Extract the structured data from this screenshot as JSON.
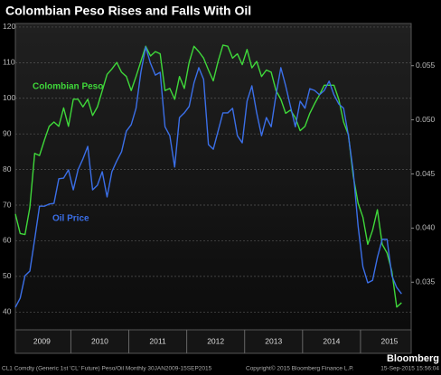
{
  "chart_data": {
    "type": "line",
    "title": "Colombian Peso Rises and Falls With Oil",
    "x": [
      "2009-01",
      "2009-02",
      "2009-03",
      "2009-04",
      "2009-05",
      "2009-06",
      "2009-07",
      "2009-08",
      "2009-09",
      "2009-10",
      "2009-11",
      "2009-12",
      "2010-01",
      "2010-02",
      "2010-03",
      "2010-04",
      "2010-05",
      "2010-06",
      "2010-07",
      "2010-08",
      "2010-09",
      "2010-10",
      "2010-11",
      "2010-12",
      "2011-01",
      "2011-02",
      "2011-03",
      "2011-04",
      "2011-05",
      "2011-06",
      "2011-07",
      "2011-08",
      "2011-09",
      "2011-10",
      "2011-11",
      "2011-12",
      "2012-01",
      "2012-02",
      "2012-03",
      "2012-04",
      "2012-05",
      "2012-06",
      "2012-07",
      "2012-08",
      "2012-09",
      "2012-10",
      "2012-11",
      "2012-12",
      "2013-01",
      "2013-02",
      "2013-03",
      "2013-04",
      "2013-05",
      "2013-06",
      "2013-07",
      "2013-08",
      "2013-09",
      "2013-10",
      "2013-11",
      "2013-12",
      "2014-01",
      "2014-02",
      "2014-03",
      "2014-04",
      "2014-05",
      "2014-06",
      "2014-07",
      "2014-08",
      "2014-09",
      "2014-10",
      "2014-11",
      "2014-12",
      "2015-01",
      "2015-02",
      "2015-03",
      "2015-04",
      "2015-05",
      "2015-06",
      "2015-07",
      "2015-08",
      "2015-09"
    ],
    "xlim": [
      "2009-01",
      "2015-11"
    ],
    "xticks": [
      2009,
      2010,
      2011,
      2012,
      2013,
      2014,
      2015
    ],
    "ylim": [
      35,
      121
    ],
    "yticks": [
      40,
      50,
      60,
      70,
      80,
      90,
      100,
      110,
      120
    ],
    "y2lim": [
      0.0306,
      0.0589
    ],
    "y2ticks": [
      0.035,
      {
        "value": 0.04,
        "label": "0.040"
      },
      0.045,
      {
        "value": 0.05,
        "label": "0.050"
      },
      0.055
    ],
    "grid": true,
    "series": [
      {
        "name": "Colombian Peso",
        "color": "#3fd83a",
        "axis": "y2",
        "values": [
          0.0413,
          0.0395,
          0.0394,
          0.0419,
          0.0469,
          0.0467,
          0.0481,
          0.0494,
          0.0498,
          0.0494,
          0.0511,
          0.0494,
          0.0519,
          0.0519,
          0.0512,
          0.0519,
          0.0504,
          0.0512,
          0.0527,
          0.0542,
          0.0547,
          0.0553,
          0.0544,
          0.054,
          0.0527,
          0.054,
          0.0554,
          0.0568,
          0.0559,
          0.0563,
          0.0561,
          0.0527,
          0.0529,
          0.0519,
          0.054,
          0.0529,
          0.0553,
          0.0568,
          0.0563,
          0.0557,
          0.0546,
          0.0536,
          0.0554,
          0.0569,
          0.0568,
          0.0557,
          0.0561,
          0.0551,
          0.0565,
          0.0548,
          0.0554,
          0.054,
          0.0546,
          0.0544,
          0.0527,
          0.0519,
          0.0506,
          0.0509,
          0.0502,
          0.049,
          0.0494,
          0.0506,
          0.0515,
          0.0523,
          0.0532,
          0.0532,
          0.0532,
          0.0519,
          0.0498,
          0.0486,
          0.0448,
          0.0423,
          0.041,
          0.0385,
          0.0398,
          0.0417,
          0.0385,
          0.0377,
          0.036,
          0.0327,
          0.0331
        ]
      },
      {
        "name": "Oil Price",
        "color": "#3b6fe8",
        "axis": "y",
        "values": [
          41.3,
          43.9,
          50.2,
          51.5,
          60.4,
          69.7,
          69.7,
          70.3,
          70.5,
          77.4,
          77.6,
          79.9,
          74.3,
          80,
          83,
          86.5,
          74.3,
          75.6,
          79.4,
          72.3,
          79.4,
          82.4,
          85,
          90.8,
          92.6,
          97.2,
          107.3,
          114.4,
          109.8,
          106.5,
          107.3,
          92,
          89.5,
          80.7,
          94.6,
          95.9,
          97.7,
          104.3,
          108.6,
          105.3,
          87,
          85.7,
          90.8,
          95.9,
          95.9,
          97.2,
          89.5,
          87.5,
          99.2,
          103.5,
          95.9,
          89.5,
          94.6,
          92,
          101,
          108.6,
          103.5,
          97.7,
          92,
          99.2,
          97.2,
          102.7,
          102.2,
          101,
          102.2,
          104.8,
          101,
          98.4,
          97.2,
          89.5,
          79.4,
          64.2,
          52.7,
          48.2,
          48.9,
          55.3,
          60.4,
          60.4,
          50.2,
          46.9,
          45.1
        ]
      }
    ],
    "footer": {
      "source": "CL1 Comdty (Generic 1st 'CL' Future) Peso/Oil  Monthly 30JAN2009-15SEP2015",
      "copyright": "Copyright© 2015 Bloomberg Finance L.P.",
      "timestamp": "15-Sep-2015 15:56:04",
      "brand": "Bloomberg"
    }
  }
}
